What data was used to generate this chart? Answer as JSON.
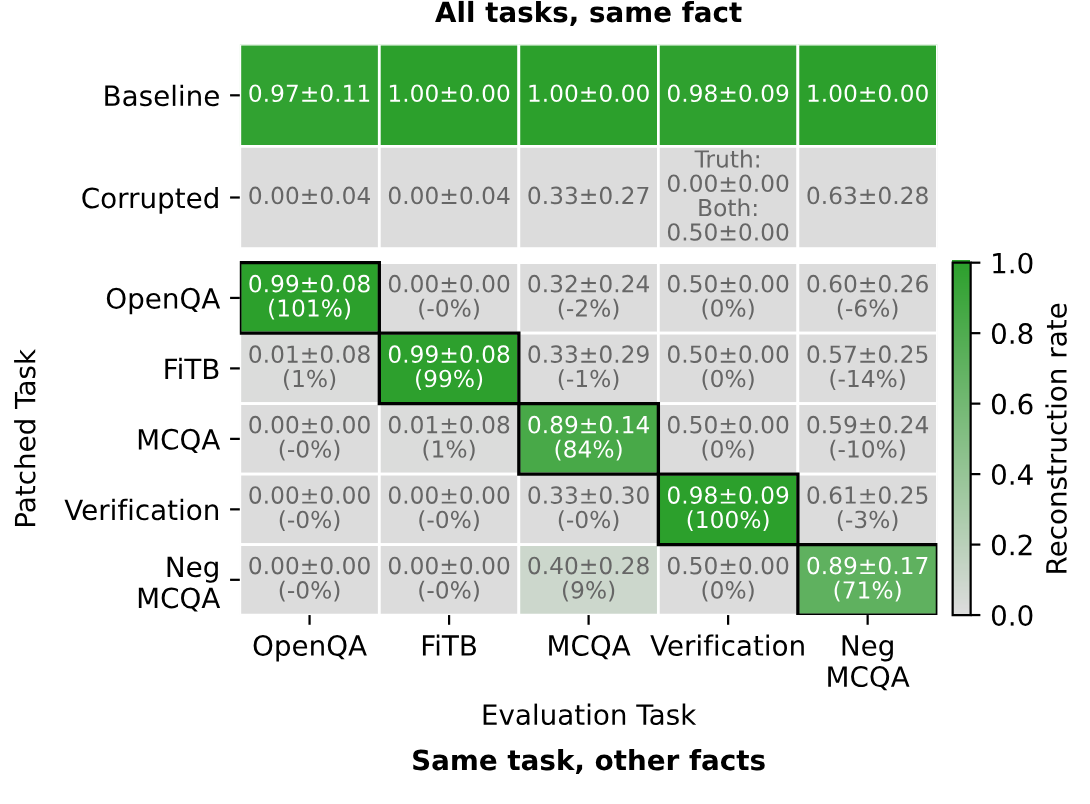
{
  "chart_data": {
    "type": "heatmap",
    "title": "All tasks, same fact",
    "xlabel": "Evaluation Task",
    "ylabel": "Patched Task",
    "clabel": "Reconstruction rate",
    "annotations": [
      "Same task, other facts"
    ],
    "categories": [
      "OpenQA",
      "FiTB",
      "MCQA",
      "Verification",
      "Neg\nMCQA"
    ],
    "y_categories": [
      "Baseline",
      "Corrupted",
      "OpenQA",
      "FiTB",
      "MCQA",
      "Verification",
      "Neg\nMCQA"
    ],
    "cells": [
      [
        0.97,
        1.0,
        1.0,
        0.98,
        1.0
      ],
      [
        0.0,
        0.0,
        0.0,
        0.0,
        0.0
      ],
      [
        1.01,
        0.0,
        -0.02,
        0.0,
        -0.06
      ],
      [
        0.01,
        0.99,
        -0.01,
        0.0,
        -0.14
      ],
      [
        0.0,
        0.01,
        0.84,
        0.0,
        -0.1
      ],
      [
        0.0,
        0.0,
        0.0,
        1.0,
        -0.03
      ],
      [
        0.0,
        0.0,
        0.09,
        0.0,
        0.71
      ]
    ],
    "cell_labels": [
      [
        "0.97±0.11",
        "1.00±0.00",
        "1.00±0.00",
        "0.98±0.09",
        "1.00±0.00"
      ],
      [
        "0.00±0.04",
        "0.00±0.04",
        "0.33±0.27",
        "Truth:\n0.00±0.00\nBoth:\n0.50±0.00",
        "0.63±0.28"
      ],
      [
        "0.99±0.08\n(101%)",
        "0.00±0.00\n(-0%)",
        "0.32±0.24\n(-2%)",
        "0.50±0.00\n(0%)",
        "0.60±0.26\n(-6%)"
      ],
      [
        "0.01±0.08\n(1%)",
        "0.99±0.08\n(99%)",
        "0.33±0.29\n(-1%)",
        "0.50±0.00\n(0%)",
        "0.57±0.25\n(-14%)"
      ],
      [
        "0.00±0.00\n(-0%)",
        "0.01±0.08\n(1%)",
        "0.89±0.14\n(84%)",
        "0.50±0.00\n(0%)",
        "0.59±0.24\n(-10%)"
      ],
      [
        "0.00±0.00\n(-0%)",
        "0.00±0.00\n(-0%)",
        "0.33±0.30\n(-0%)",
        "0.98±0.09\n(100%)",
        "0.61±0.25\n(-3%)"
      ],
      [
        "0.00±0.00\n(-0%)",
        "0.00±0.00\n(-0%)",
        "0.40±0.28\n(9%)",
        "0.50±0.00\n(0%)",
        "0.89±0.17\n(71%)"
      ]
    ],
    "clim": [
      0,
      1
    ],
    "cticks": [
      {
        "value": 0,
        "label": "0.0"
      },
      {
        "value": 0.2,
        "label": "0.2"
      },
      {
        "value": 0.4,
        "label": "0.4"
      },
      {
        "value": 0.6,
        "label": "0.6"
      },
      {
        "value": 0.8,
        "label": "0.8"
      },
      {
        "value": 1,
        "label": "1.0"
      }
    ]
  }
}
